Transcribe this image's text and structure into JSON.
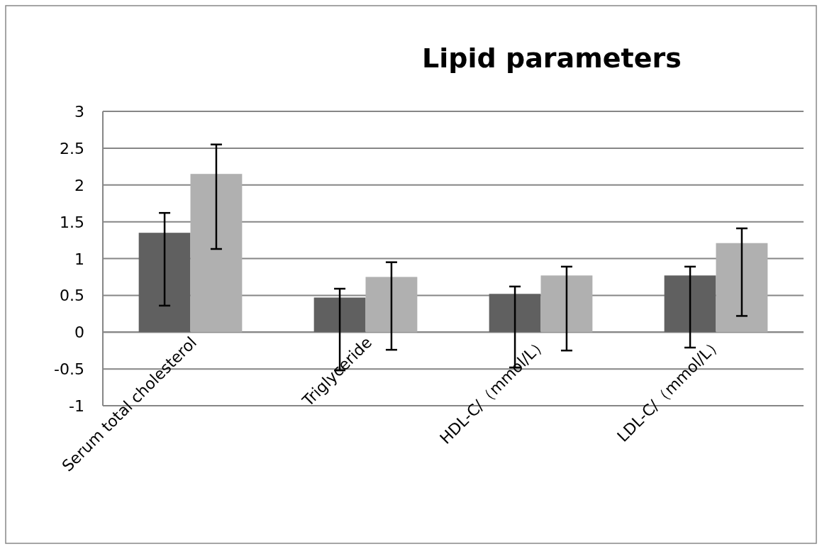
{
  "chart_data": {
    "type": "bar",
    "title": "Lipid parameters",
    "categories": [
      "Serum total cholesterol",
      "Triglyceride",
      "HDL-C/（mmol/L）",
      "LDL-C/（mmol/L）"
    ],
    "series": [
      {
        "color": "#606060",
        "values": [
          1.35,
          0.47,
          0.52,
          0.77
        ],
        "errors": [
          [
            0.36,
            1.62
          ],
          [
            -0.52,
            0.59
          ],
          [
            -0.48,
            0.62
          ],
          [
            -0.21,
            0.89
          ]
        ]
      },
      {
        "color": "#b0b0b0",
        "values": [
          2.15,
          0.75,
          0.77,
          1.21
        ],
        "errors": [
          [
            1.13,
            2.55
          ],
          [
            -0.24,
            0.95
          ],
          [
            -0.25,
            0.89
          ],
          [
            0.22,
            1.41
          ]
        ]
      }
    ],
    "ylim": [
      -1,
      3
    ],
    "yticks": [
      -1,
      -0.5,
      0,
      0.5,
      1,
      1.5,
      2,
      2.5,
      3
    ],
    "grid": "y"
  }
}
